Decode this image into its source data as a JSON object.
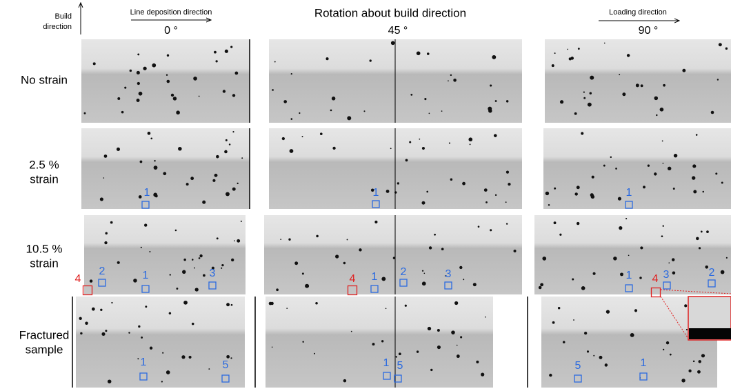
{
  "header": {
    "build_direction": [
      "Build",
      "direction"
    ],
    "line_deposition_direction": "Line deposition direction",
    "title": "Rotation about build direction",
    "loading_direction": "Loading direction",
    "angles": [
      "0 °",
      "45 °",
      "90 °"
    ]
  },
  "rows": [
    [
      "No strain"
    ],
    [
      "2.5 %",
      "strain"
    ],
    [
      "10.5 %",
      "strain"
    ],
    [
      "Fractured",
      "sample"
    ]
  ],
  "markers": {
    "strain_2_5": [
      "1",
      "1",
      "1"
    ],
    "strain_10_5": [
      "4",
      "2",
      "1",
      "3",
      "4",
      "1",
      "2",
      "3",
      "1",
      "3",
      "4",
      "2"
    ],
    "fractured": [
      "1",
      "5",
      "1",
      "5",
      "5",
      "1"
    ]
  }
}
